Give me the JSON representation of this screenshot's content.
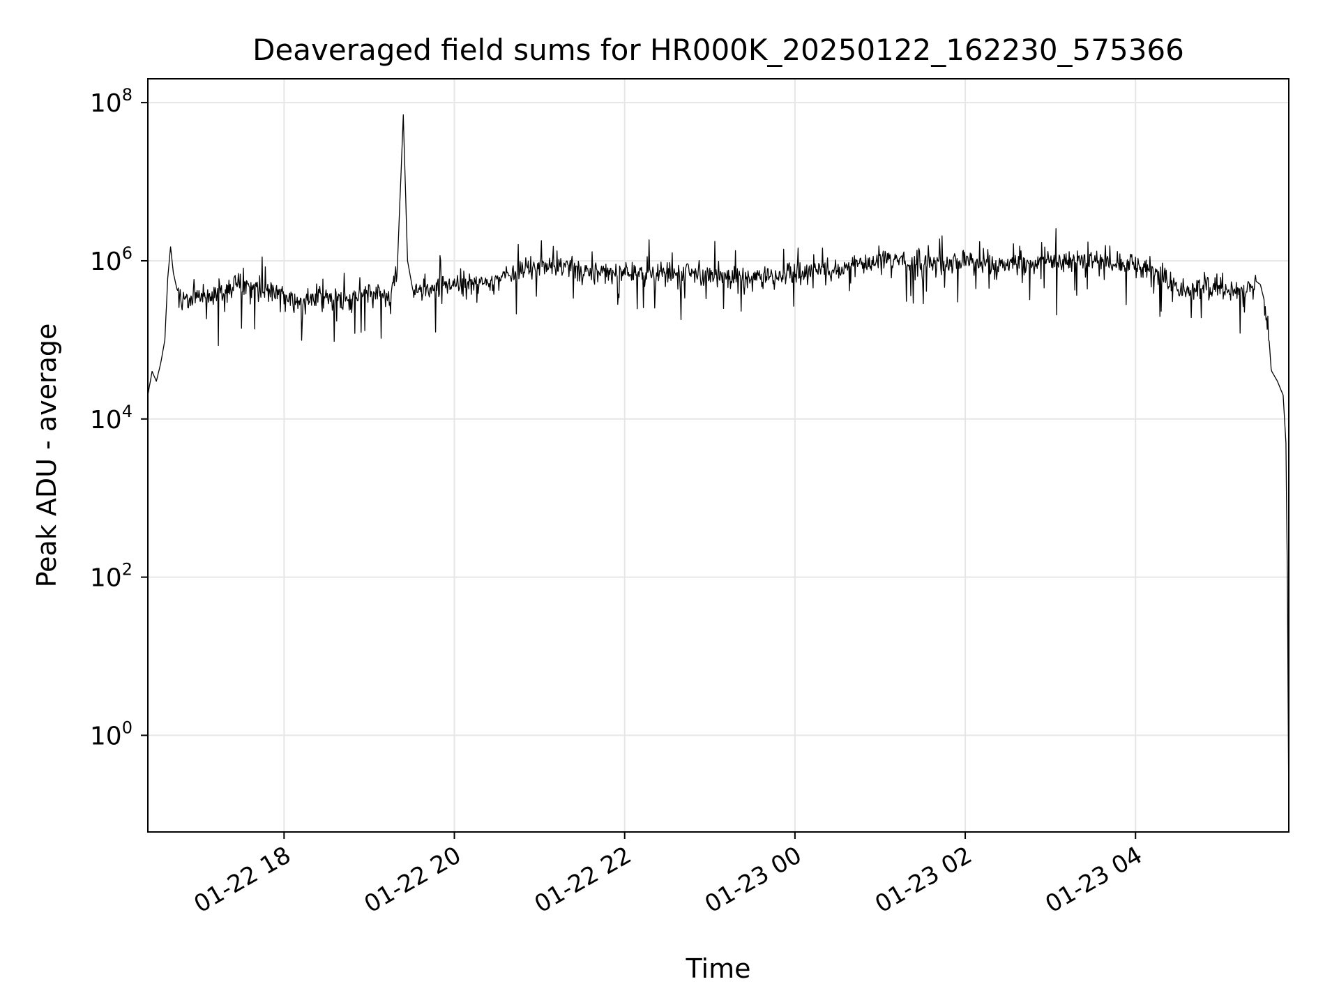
{
  "chart_data": {
    "type": "line",
    "title": "Deaveraged field sums for HR000K_20250122_162230_575366",
    "xlabel": "Time",
    "ylabel": "Peak ADU - average",
    "yscale": "log",
    "ylim": [
      0.06,
      200000000
    ],
    "xlim": [
      "2025-01-22 16:24",
      "2025-01-23 05:48"
    ],
    "grid": true,
    "legend": "none",
    "line_color": "#000000",
    "grid_color": "#e6e6e6",
    "x_ticks": [
      {
        "value": "2025-01-22 18:00",
        "label": "01-22 18"
      },
      {
        "value": "2025-01-22 20:00",
        "label": "01-22 20"
      },
      {
        "value": "2025-01-22 22:00",
        "label": "01-22 22"
      },
      {
        "value": "2025-01-23 00:00",
        "label": "01-23 00"
      },
      {
        "value": "2025-01-23 02:00",
        "label": "01-23 02"
      },
      {
        "value": "2025-01-23 04:00",
        "label": "01-23 04"
      }
    ],
    "y_ticks": [
      {
        "value": 1,
        "base": "10",
        "exp": "0"
      },
      {
        "value": 100,
        "base": "10",
        "exp": "2"
      },
      {
        "value": 10000,
        "base": "10",
        "exp": "4"
      },
      {
        "value": 1000000,
        "base": "10",
        "exp": "6"
      },
      {
        "value": 100000000,
        "base": "10",
        "exp": "8"
      }
    ],
    "series": [
      {
        "x": [
          "2025-01-22 16:24",
          "2025-01-22 16:27",
          "2025-01-22 16:30",
          "2025-01-22 16:33",
          "2025-01-22 16:36",
          "2025-01-22 16:38",
          "2025-01-22 16:40",
          "2025-01-22 16:42",
          "2025-01-22 16:45",
          "2025-01-22 16:50",
          "2025-01-22 17:00",
          "2025-01-22 17:15",
          "2025-01-22 17:30",
          "2025-01-22 17:45",
          "2025-01-22 18:00",
          "2025-01-22 18:15",
          "2025-01-22 18:30",
          "2025-01-22 18:45",
          "2025-01-22 19:00",
          "2025-01-22 19:15",
          "2025-01-22 19:20",
          "2025-01-22 19:24",
          "2025-01-22 19:27",
          "2025-01-22 19:31",
          "2025-01-22 19:45",
          "2025-01-22 20:00",
          "2025-01-22 20:30",
          "2025-01-22 21:00",
          "2025-01-22 21:30",
          "2025-01-22 22:00",
          "2025-01-22 22:30",
          "2025-01-22 23:00",
          "2025-01-22 23:30",
          "2025-01-23 00:00",
          "2025-01-23 00:30",
          "2025-01-23 01:00",
          "2025-01-23 01:30",
          "2025-01-23 02:00",
          "2025-01-23 02:30",
          "2025-01-23 03:00",
          "2025-01-23 03:30",
          "2025-01-23 04:00",
          "2025-01-23 04:15",
          "2025-01-23 04:30",
          "2025-01-23 04:45",
          "2025-01-23 05:00",
          "2025-01-23 05:15",
          "2025-01-23 05:25",
          "2025-01-23 05:28",
          "2025-01-23 05:31",
          "2025-01-23 05:36",
          "2025-01-23 05:40",
          "2025-01-23 05:44",
          "2025-01-23 05:46",
          "2025-01-23 05:47",
          "2025-01-23 05:48"
        ],
        "y": [
          20000,
          40000,
          30000,
          50000,
          100000,
          600000,
          1500000,
          700000,
          400000,
          300000,
          350000,
          400000,
          500000,
          450000,
          350000,
          300000,
          350000,
          300000,
          400000,
          350000,
          1000000,
          70000000,
          1000000,
          400000,
          450000,
          500000,
          550000,
          900000,
          800000,
          700000,
          700000,
          650000,
          600000,
          700000,
          800000,
          1000000,
          900000,
          1000000,
          900000,
          1000000,
          1000000,
          900000,
          700000,
          400000,
          450000,
          450000,
          400000,
          550000,
          500000,
          300000,
          40000,
          30000,
          20000,
          5000,
          100,
          0.1
        ]
      }
    ]
  }
}
